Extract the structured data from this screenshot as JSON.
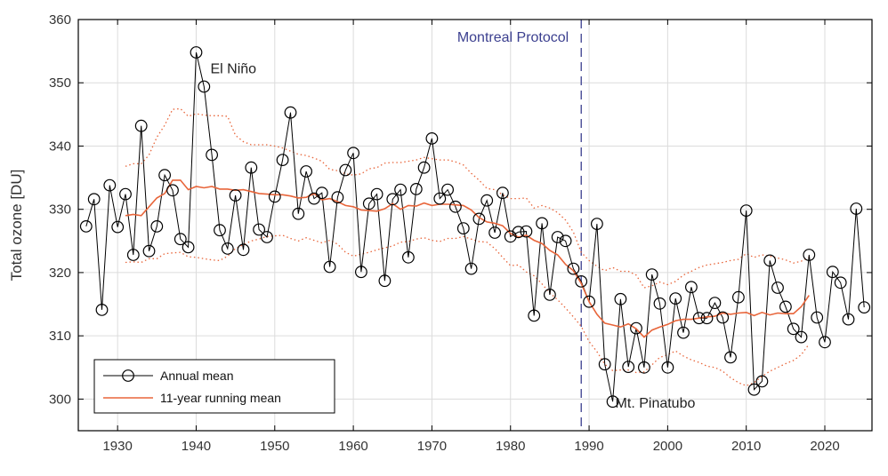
{
  "chart_data": {
    "type": "line",
    "ylabel": "Total ozone [DU]",
    "xlabel": "",
    "xlim": [
      1925,
      2026
    ],
    "ylim": [
      295,
      360
    ],
    "x_ticks": [
      1930,
      1940,
      1950,
      1960,
      1970,
      1980,
      1990,
      2000,
      2010,
      2020
    ],
    "y_ticks": [
      300,
      310,
      320,
      330,
      340,
      350,
      360
    ],
    "grid": true,
    "legend_position": "bottom-left",
    "legend": {
      "annual": "Annual mean",
      "running": "11-year running mean"
    },
    "colors": {
      "annual": "#000000",
      "running": "#e8653a",
      "dotted": "#e8653a",
      "vline": "#3b3f8f"
    },
    "annotations": {
      "elnino": {
        "text": "El Niño",
        "x": 1940,
        "y": 355
      },
      "pinatubo": {
        "text": "Mt. Pinatubo",
        "x": 1993,
        "y": 299.6
      },
      "montreal": {
        "text": "Montreal Protocol",
        "x": 1989
      }
    },
    "series": [
      {
        "key": "annual",
        "name": "Annual mean",
        "x": [
          1926,
          1927,
          1928,
          1929,
          1930,
          1931,
          1932,
          1933,
          1934,
          1935,
          1936,
          1937,
          1938,
          1939,
          1940,
          1941,
          1942,
          1943,
          1944,
          1945,
          1946,
          1947,
          1948,
          1949,
          1950,
          1951,
          1952,
          1953,
          1954,
          1955,
          1956,
          1957,
          1958,
          1959,
          1960,
          1961,
          1962,
          1963,
          1964,
          1965,
          1966,
          1967,
          1968,
          1969,
          1970,
          1971,
          1972,
          1973,
          1974,
          1975,
          1976,
          1977,
          1978,
          1979,
          1980,
          1981,
          1982,
          1983,
          1984,
          1985,
          1986,
          1987,
          1988,
          1989,
          1990,
          1991,
          1992,
          1993,
          1994,
          1995,
          1996,
          1997,
          1998,
          1999,
          2000,
          2001,
          2002,
          2003,
          2004,
          2005,
          2006,
          2007,
          2008,
          2009,
          2010,
          2011,
          2012,
          2013,
          2014,
          2015,
          2016,
          2017,
          2018,
          2019,
          2020,
          2021,
          2022,
          2023,
          2024,
          2025
        ],
        "values": [
          327.3,
          331.6,
          314.1,
          333.8,
          327.2,
          332.4,
          322.8,
          343.2,
          323.4,
          327.3,
          335.4,
          333.0,
          325.3,
          324.0,
          354.8,
          349.4,
          338.6,
          326.7,
          323.8,
          332.2,
          323.6,
          336.6,
          326.8,
          325.6,
          332.0,
          337.8,
          345.3,
          329.3,
          336.0,
          331.7,
          332.6,
          320.9,
          331.9,
          336.2,
          338.9,
          320.1,
          330.9,
          332.4,
          318.7,
          331.6,
          333.1,
          322.4,
          333.2,
          336.6,
          341.2,
          331.7,
          333.1,
          330.4,
          327.0,
          320.6,
          328.5,
          331.4,
          326.3,
          332.6,
          325.7,
          326.4,
          326.5,
          313.2,
          327.8,
          316.5,
          325.6,
          325.0,
          320.6,
          318.6,
          315.4,
          327.7,
          305.5,
          299.6,
          315.8,
          305.1,
          311.2,
          305.0,
          319.7,
          315.1,
          305.0,
          315.9,
          310.5,
          317.7,
          312.8,
          312.8,
          315.2,
          312.9,
          306.6,
          316.1,
          329.8,
          301.5,
          302.8,
          321.9,
          317.6,
          314.6,
          311.1,
          309.8,
          322.8,
          312.9,
          309.0,
          320.1,
          318.4,
          312.6,
          330.1,
          314.5
        ]
      },
      {
        "key": "running",
        "name": "11-year running mean",
        "x": [
          1931,
          1932,
          1933,
          1934,
          1935,
          1936,
          1937,
          1938,
          1939,
          1940,
          1941,
          1942,
          1943,
          1944,
          1945,
          1946,
          1947,
          1948,
          1949,
          1950,
          1951,
          1952,
          1953,
          1954,
          1955,
          1956,
          1957,
          1958,
          1959,
          1960,
          1961,
          1962,
          1963,
          1964,
          1965,
          1966,
          1967,
          1968,
          1969,
          1970,
          1971,
          1972,
          1973,
          1974,
          1975,
          1976,
          1977,
          1978,
          1979,
          1980,
          1981,
          1982,
          1983,
          1984,
          1985,
          1986,
          1987,
          1988,
          1989,
          1990,
          1991,
          1992,
          1993,
          1994,
          1995,
          1996,
          1997,
          1998,
          1999,
          2000,
          2001,
          2002,
          2003,
          2004,
          2005,
          2006,
          2007,
          2008,
          2009,
          2010,
          2011,
          2012,
          2013,
          2014,
          2015,
          2016,
          2017,
          2018
        ],
        "values": [
          329.0,
          329.2,
          329.0,
          330.4,
          331.8,
          332.5,
          334.6,
          334.6,
          333.1,
          333.6,
          333.4,
          333.6,
          333.2,
          333.2,
          333.0,
          333.1,
          332.8,
          332.5,
          332.4,
          332.3,
          332.3,
          332.1,
          331.8,
          331.9,
          332.5,
          331.5,
          331.7,
          331.2,
          330.6,
          330.4,
          329.9,
          329.8,
          329.7,
          330.1,
          330.9,
          330.0,
          330.6,
          330.5,
          331.0,
          330.6,
          330.8,
          330.8,
          330.7,
          330.6,
          329.9,
          328.7,
          328.0,
          327.8,
          327.4,
          326.2,
          325.6,
          325.9,
          325.1,
          324.6,
          323.5,
          322.8,
          321.3,
          320.3,
          318.3,
          315.4,
          313.4,
          312.0,
          311.7,
          311.4,
          311.9,
          311.1,
          309.8,
          310.9,
          311.4,
          311.8,
          312.4,
          312.6,
          312.6,
          312.8,
          313.0,
          313.1,
          313.6,
          313.4,
          313.6,
          313.7,
          313.2,
          313.7,
          313.3,
          313.6,
          313.5,
          313.5,
          314.6,
          316.4
        ]
      },
      {
        "key": "upper",
        "x": [
          1931,
          1932,
          1933,
          1934,
          1935,
          1936,
          1937,
          1938,
          1939,
          1940,
          1941,
          1942,
          1943,
          1944,
          1945,
          1946,
          1947,
          1948,
          1949,
          1950,
          1951,
          1952,
          1953,
          1954,
          1955,
          1956,
          1957,
          1958,
          1959,
          1960,
          1961,
          1962,
          1963,
          1964,
          1965,
          1966,
          1967,
          1968,
          1969,
          1970,
          1971,
          1972,
          1973,
          1974,
          1975,
          1976,
          1977,
          1978,
          1979,
          1980,
          1981,
          1982,
          1983,
          1984,
          1985,
          1986,
          1987,
          1988,
          1989,
          1990,
          1991,
          1992,
          1993,
          1994,
          1995,
          1996,
          1997,
          1998,
          1999,
          2000,
          2001,
          2002,
          2003,
          2004,
          2005,
          2006,
          2007,
          2008,
          2009,
          2010,
          2011,
          2012,
          2013,
          2014,
          2015,
          2016,
          2017,
          2018
        ],
        "values": [
          336.8,
          337.2,
          337.2,
          338.6,
          341.4,
          343.3,
          345.8,
          345.9,
          344.7,
          345.1,
          344.9,
          344.8,
          344.8,
          344.7,
          341.7,
          340.7,
          340.2,
          340.2,
          340.2,
          340.0,
          339.7,
          339.2,
          338.7,
          338.5,
          338.1,
          337.6,
          336.3,
          336.1,
          335.6,
          335.4,
          335.6,
          336.4,
          336.6,
          337.3,
          337.4,
          337.4,
          337.6,
          337.8,
          338.2,
          338.0,
          337.8,
          337.8,
          337.5,
          337.0,
          335.7,
          334.6,
          333.3,
          333.1,
          332.3,
          331.7,
          331.7,
          331.8,
          330.2,
          330.6,
          330.2,
          329.5,
          328.3,
          326.4,
          323.2,
          321.9,
          321.0,
          320.3,
          320.8,
          320.2,
          320.2,
          319.6,
          317.6,
          317.9,
          318.5,
          318.1,
          318.6,
          319.6,
          320.2,
          320.8,
          321.2,
          321.4,
          321.6,
          321.9,
          322.1,
          323.0,
          322.4,
          322.8,
          322.6,
          322.3,
          322.0,
          321.5,
          321.8,
          322.4
        ]
      },
      {
        "key": "lower",
        "x": [
          1931,
          1932,
          1933,
          1934,
          1935,
          1936,
          1937,
          1938,
          1939,
          1940,
          1941,
          1942,
          1943,
          1944,
          1945,
          1946,
          1947,
          1948,
          1949,
          1950,
          1951,
          1952,
          1953,
          1954,
          1955,
          1956,
          1957,
          1958,
          1959,
          1960,
          1961,
          1962,
          1963,
          1964,
          1965,
          1966,
          1967,
          1968,
          1969,
          1970,
          1971,
          1972,
          1973,
          1974,
          1975,
          1976,
          1977,
          1978,
          1979,
          1980,
          1981,
          1982,
          1983,
          1984,
          1985,
          1986,
          1987,
          1988,
          1989,
          1990,
          1991,
          1992,
          1993,
          1994,
          1995,
          1996,
          1997,
          1998,
          1999,
          2000,
          2001,
          2002,
          2003,
          2004,
          2005,
          2006,
          2007,
          2008,
          2009,
          2010,
          2011,
          2012,
          2013,
          2014,
          2015,
          2016,
          2017,
          2018
        ],
        "values": [
          321.6,
          321.7,
          321.6,
          322.2,
          322.2,
          323.0,
          323.1,
          323.2,
          322.5,
          322.4,
          322.2,
          322.0,
          321.9,
          322.6,
          323.8,
          324.4,
          325.0,
          325.3,
          325.7,
          325.8,
          325.9,
          325.4,
          325.0,
          325.5,
          325.1,
          324.7,
          325.1,
          324.5,
          323.2,
          322.6,
          322.9,
          323.2,
          323.6,
          323.9,
          324.2,
          324.8,
          324.9,
          325.3,
          325.5,
          325.1,
          324.9,
          325.4,
          325.4,
          325.7,
          325.3,
          324.9,
          324.8,
          323.8,
          322.4,
          321.1,
          321.2,
          320.1,
          319.5,
          318.2,
          316.8,
          315.7,
          314.4,
          313.0,
          311.5,
          309.1,
          307.5,
          305.5,
          304.5,
          304.6,
          304.6,
          304.2,
          304.3,
          305.4,
          306.6,
          307.0,
          307.6,
          306.8,
          306.2,
          305.8,
          305.2,
          305.0,
          304.4,
          303.4,
          302.6,
          302.1,
          302.6,
          303.6,
          304.4,
          305.0,
          305.6,
          306.1,
          307.0,
          308.7
        ]
      }
    ]
  }
}
